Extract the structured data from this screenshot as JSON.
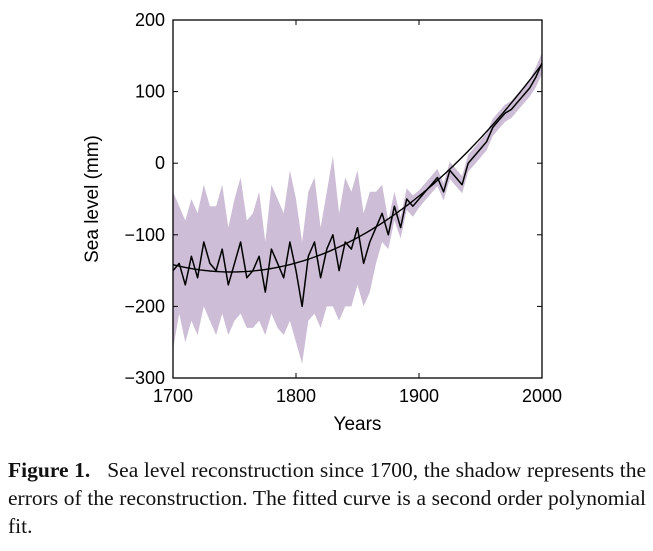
{
  "chart_data": {
    "type": "line",
    "xlabel": "Years",
    "ylabel": "Sea level (mm)",
    "xlim": [
      1700,
      2000
    ],
    "ylim": [
      -300,
      200
    ],
    "xticks": [
      1700,
      1800,
      1900,
      2000
    ],
    "yticks": [
      -300,
      -200,
      -100,
      0,
      100,
      200
    ],
    "grid": false,
    "colors": {
      "shadow": "#cdbdd6",
      "line": "#000000",
      "fit": "#000000"
    },
    "series": [
      {
        "kind": "reconstruction",
        "x": [
          1700,
          1705,
          1710,
          1715,
          1720,
          1725,
          1730,
          1735,
          1740,
          1745,
          1750,
          1755,
          1760,
          1765,
          1770,
          1775,
          1780,
          1785,
          1790,
          1795,
          1800,
          1805,
          1810,
          1815,
          1820,
          1825,
          1830,
          1835,
          1840,
          1845,
          1850,
          1855,
          1860,
          1865,
          1870,
          1875,
          1880,
          1885,
          1890,
          1895,
          1900,
          1905,
          1910,
          1915,
          1920,
          1925,
          1930,
          1935,
          1940,
          1945,
          1950,
          1955,
          1960,
          1965,
          1970,
          1975,
          1980,
          1985,
          1990,
          1995,
          2000
        ],
        "y": [
          -150,
          -140,
          -170,
          -130,
          -160,
          -110,
          -140,
          -150,
          -120,
          -170,
          -140,
          -110,
          -160,
          -150,
          -130,
          -180,
          -120,
          -140,
          -160,
          -110,
          -150,
          -200,
          -130,
          -110,
          -160,
          -120,
          -100,
          -150,
          -110,
          -120,
          -90,
          -140,
          -110,
          -90,
          -70,
          -100,
          -60,
          -90,
          -50,
          -60,
          -50,
          -40,
          -30,
          -20,
          -40,
          -10,
          -20,
          -30,
          0,
          10,
          20,
          30,
          50,
          60,
          70,
          75,
          85,
          95,
          105,
          120,
          140
        ],
        "err_lower": [
          -260,
          -210,
          -250,
          -220,
          -240,
          -200,
          -220,
          -240,
          -210,
          -240,
          -220,
          -210,
          -230,
          -230,
          -220,
          -240,
          -210,
          -230,
          -240,
          -220,
          -250,
          -280,
          -220,
          -210,
          -230,
          -200,
          -200,
          -220,
          -200,
          -200,
          -170,
          -200,
          -180,
          -140,
          -110,
          -120,
          -80,
          -105,
          -65,
          -75,
          -62,
          -52,
          -42,
          -32,
          -52,
          -22,
          -32,
          -42,
          -12,
          -2,
          8,
          18,
          38,
          48,
          58,
          63,
          73,
          83,
          93,
          106,
          125
        ],
        "err_upper": [
          -40,
          -60,
          -80,
          -50,
          -70,
          -30,
          -60,
          -60,
          -30,
          -90,
          -50,
          -20,
          -80,
          -70,
          -40,
          -110,
          -30,
          -50,
          -70,
          -10,
          -50,
          -110,
          -40,
          -20,
          -90,
          -40,
          10,
          -70,
          -20,
          -40,
          -10,
          -70,
          -40,
          -40,
          -30,
          -80,
          -40,
          -75,
          -35,
          -45,
          -38,
          -28,
          -18,
          -8,
          -28,
          2,
          -8,
          -18,
          12,
          22,
          32,
          42,
          62,
          72,
          82,
          87,
          97,
          107,
          117,
          134,
          155
        ]
      },
      {
        "kind": "fit",
        "x": [
          1700,
          1725,
          1750,
          1775,
          1800,
          1825,
          1850,
          1875,
          1900,
          1925,
          1950,
          1975,
          2000
        ],
        "y": [
          -140,
          -150,
          -153,
          -150,
          -140,
          -125,
          -103,
          -75,
          -45,
          -8,
          33,
          82,
          140
        ]
      }
    ]
  },
  "caption": {
    "label": "Figure 1.",
    "text": "Sea level reconstruction since 1700, the shadow represents the errors of the reconstruction. The fitted curve is a second order polynomial fit."
  }
}
